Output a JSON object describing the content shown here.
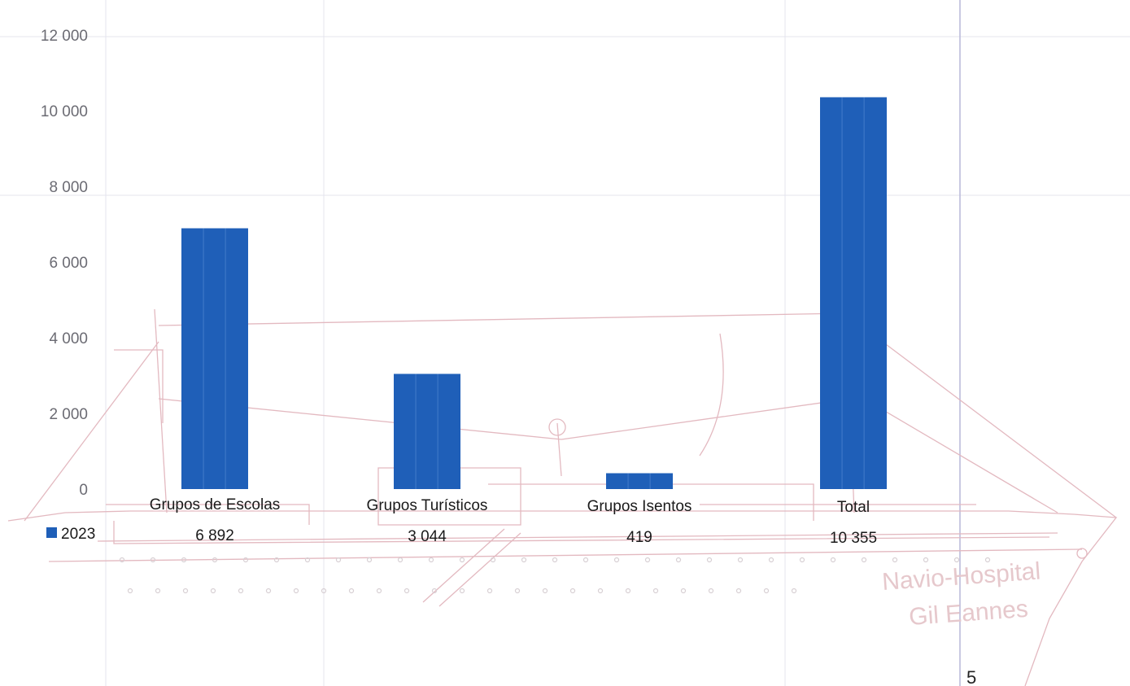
{
  "watermark": {
    "line1": "Navio-Hospital",
    "line2": "Gil Eannes",
    "ship_icon": "ship-drawing-icon"
  },
  "page_number": "5",
  "colors": {
    "bar": "#1f5fb8",
    "bar_stripe": "#5b8ed6",
    "grid": "#dcdce6",
    "ship_line": "#e3b9c0",
    "axis_line": "#b7b7d9"
  },
  "chart_data": {
    "type": "bar",
    "categories": [
      "Grupos de Escolas",
      "Grupos Turísticos",
      "Grupos Isentos",
      "Total"
    ],
    "series": [
      {
        "name": "2023",
        "values": [
          6892,
          3044,
          419,
          10355
        ]
      }
    ],
    "value_labels": [
      "6 892",
      "3 044",
      "419",
      "10 355"
    ],
    "yticks": [
      0,
      2000,
      4000,
      6000,
      8000,
      10000,
      12000
    ],
    "ytick_labels": [
      "0",
      "2 000",
      "4 000",
      "6 000",
      "8 000",
      "10 000",
      "12 000"
    ],
    "ylim": [
      0,
      12000
    ],
    "title": "",
    "xlabel": "",
    "ylabel": "",
    "legend": {
      "placement": "left-of-data-table",
      "symbol": "square"
    },
    "grid": false
  }
}
